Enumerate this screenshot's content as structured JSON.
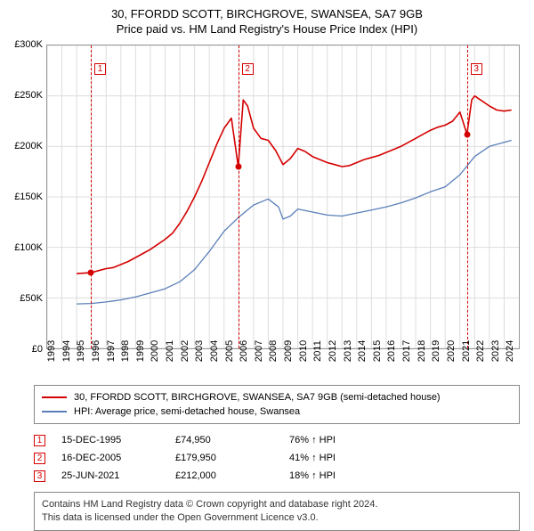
{
  "title": {
    "line1": "30, FFORDD SCOTT, BIRCHGROVE, SWANSEA, SA7 9GB",
    "line2": "Price paid vs. HM Land Registry's House Price Index (HPI)"
  },
  "chart": {
    "type": "line",
    "background_color": "#ffffff",
    "grid_color": "#dddddd",
    "border_color": "#999999",
    "x_years": [
      1993,
      1994,
      1995,
      1996,
      1997,
      1998,
      1999,
      2000,
      2001,
      2002,
      2003,
      2004,
      2005,
      2006,
      2007,
      2008,
      2009,
      2010,
      2011,
      2012,
      2013,
      2014,
      2015,
      2016,
      2017,
      2018,
      2019,
      2020,
      2021,
      2022,
      2023,
      2024
    ],
    "xlim": [
      1993,
      2025
    ],
    "ylim": [
      0,
      300000
    ],
    "ytick_step": 50000,
    "ylabel_format": "£{v}K",
    "y_ticks": [
      "£0",
      "£50K",
      "£100K",
      "£150K",
      "£200K",
      "£250K",
      "£300K"
    ],
    "series": [
      {
        "id": "subject",
        "label": "30, FFORDD SCOTT, BIRCHGROVE, SWANSEA, SA7 9GB (semi-detached house)",
        "color": "#d40000",
        "line_width": 1.6,
        "data": [
          [
            1995.0,
            74000
          ],
          [
            1995.96,
            74950
          ],
          [
            1996.5,
            77000
          ],
          [
            1997.0,
            79000
          ],
          [
            1997.5,
            80000
          ],
          [
            1998.0,
            83000
          ],
          [
            1998.5,
            86000
          ],
          [
            1999.0,
            90000
          ],
          [
            1999.5,
            94000
          ],
          [
            2000.0,
            98000
          ],
          [
            2000.5,
            103000
          ],
          [
            2001.0,
            108000
          ],
          [
            2001.5,
            114000
          ],
          [
            2002.0,
            124000
          ],
          [
            2002.5,
            136000
          ],
          [
            2003.0,
            150000
          ],
          [
            2003.5,
            166000
          ],
          [
            2004.0,
            184000
          ],
          [
            2004.5,
            202000
          ],
          [
            2005.0,
            218000
          ],
          [
            2005.5,
            228000
          ],
          [
            2005.96,
            179950
          ],
          [
            2006.3,
            246000
          ],
          [
            2006.6,
            240000
          ],
          [
            2007.0,
            218000
          ],
          [
            2007.5,
            208000
          ],
          [
            2008.0,
            206000
          ],
          [
            2008.5,
            196000
          ],
          [
            2009.0,
            182000
          ],
          [
            2009.5,
            188000
          ],
          [
            2010.0,
            198000
          ],
          [
            2010.5,
            195000
          ],
          [
            2011.0,
            190000
          ],
          [
            2011.5,
            187000
          ],
          [
            2012.0,
            184000
          ],
          [
            2012.5,
            182000
          ],
          [
            2013.0,
            180000
          ],
          [
            2013.5,
            181000
          ],
          [
            2014.0,
            184000
          ],
          [
            2014.5,
            187000
          ],
          [
            2015.0,
            189000
          ],
          [
            2015.5,
            191000
          ],
          [
            2016.0,
            194000
          ],
          [
            2016.5,
            197000
          ],
          [
            2017.0,
            200000
          ],
          [
            2017.5,
            204000
          ],
          [
            2018.0,
            208000
          ],
          [
            2018.5,
            212000
          ],
          [
            2019.0,
            216000
          ],
          [
            2019.5,
            219000
          ],
          [
            2020.0,
            221000
          ],
          [
            2020.5,
            225000
          ],
          [
            2021.0,
            234000
          ],
          [
            2021.48,
            212000
          ],
          [
            2021.8,
            246000
          ],
          [
            2022.0,
            250000
          ],
          [
            2022.5,
            245000
          ],
          [
            2023.0,
            240000
          ],
          [
            2023.5,
            236000
          ],
          [
            2024.0,
            235000
          ],
          [
            2024.5,
            236000
          ]
        ]
      },
      {
        "id": "hpi",
        "label": "HPI: Average price, semi-detached house, Swansea",
        "color": "#5a7fb8",
        "line_width": 1.3,
        "data": [
          [
            1995.0,
            44000
          ],
          [
            1996.0,
            44500
          ],
          [
            1997.0,
            46000
          ],
          [
            1998.0,
            48000
          ],
          [
            1999.0,
            51000
          ],
          [
            2000.0,
            55000
          ],
          [
            2001.0,
            59000
          ],
          [
            2002.0,
            66000
          ],
          [
            2003.0,
            78000
          ],
          [
            2004.0,
            96000
          ],
          [
            2005.0,
            116000
          ],
          [
            2006.0,
            130000
          ],
          [
            2007.0,
            142000
          ],
          [
            2008.0,
            148000
          ],
          [
            2008.7,
            140000
          ],
          [
            2009.0,
            128000
          ],
          [
            2009.5,
            131000
          ],
          [
            2010.0,
            138000
          ],
          [
            2011.0,
            135000
          ],
          [
            2012.0,
            132000
          ],
          [
            2013.0,
            131000
          ],
          [
            2014.0,
            134000
          ],
          [
            2015.0,
            137000
          ],
          [
            2016.0,
            140000
          ],
          [
            2017.0,
            144000
          ],
          [
            2018.0,
            149000
          ],
          [
            2019.0,
            155000
          ],
          [
            2020.0,
            160000
          ],
          [
            2021.0,
            172000
          ],
          [
            2022.0,
            190000
          ],
          [
            2023.0,
            200000
          ],
          [
            2024.0,
            204000
          ],
          [
            2024.5,
            206000
          ]
        ]
      }
    ],
    "event_markers": [
      {
        "n": "1",
        "x": 1995.96,
        "y": 74950,
        "dot_color": "#d40000",
        "box_top_pct": 6
      },
      {
        "n": "2",
        "x": 2005.96,
        "y": 179950,
        "dot_color": "#d40000",
        "box_top_pct": 6
      },
      {
        "n": "3",
        "x": 2021.48,
        "y": 212000,
        "dot_color": "#d40000",
        "box_top_pct": 6
      }
    ]
  },
  "legend": {
    "rows": [
      {
        "color": "#d40000",
        "text": "30, FFORDD SCOTT, BIRCHGROVE, SWANSEA, SA7 9GB (semi-detached house)"
      },
      {
        "color": "#5a7fb8",
        "text": "HPI: Average price, semi-detached house, Swansea"
      }
    ]
  },
  "sales": [
    {
      "n": "1",
      "date": "15-DEC-1995",
      "price": "£74,950",
      "pct": "76% ↑ HPI"
    },
    {
      "n": "2",
      "date": "16-DEC-2005",
      "price": "£179,950",
      "pct": "41% ↑ HPI"
    },
    {
      "n": "3",
      "date": "25-JUN-2021",
      "price": "£212,000",
      "pct": "18% ↑ HPI"
    }
  ],
  "footer": {
    "line1": "Contains HM Land Registry data © Crown copyright and database right 2024.",
    "line2": "This data is licensed under the Open Government Licence v3.0."
  }
}
